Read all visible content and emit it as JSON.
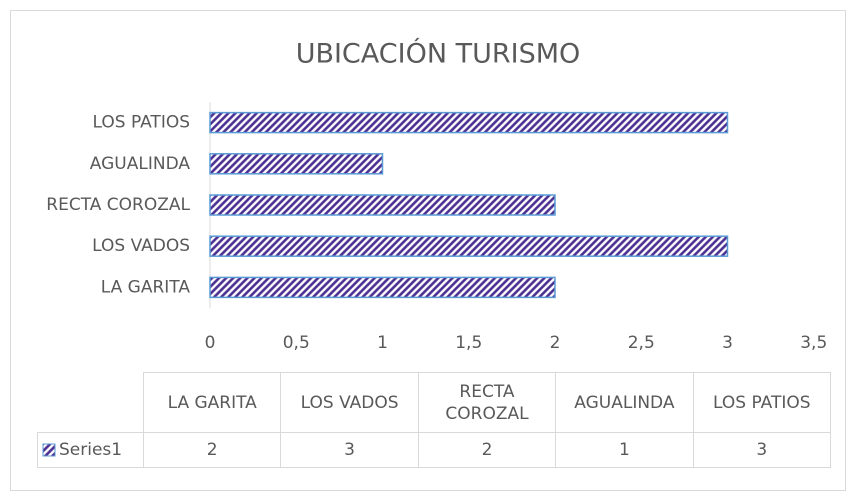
{
  "chart_data": {
    "type": "bar",
    "orientation": "horizontal",
    "title": "UBICACIÓN TURISMO",
    "categories": [
      "LA GARITA",
      "LOS VADOS",
      "RECTA COROZAL",
      "AGUALINDA",
      "LOS PATIOS"
    ],
    "series": [
      {
        "name": "Series1",
        "color": "#4b2e91",
        "values": [
          2,
          3,
          2,
          1,
          3
        ]
      }
    ],
    "xlim": [
      0,
      3.5
    ],
    "xticks": [
      0,
      {
        "value": 0.5,
        "label": "0,5"
      },
      1,
      {
        "value": 1.5,
        "label": "1,5"
      },
      2,
      {
        "value": 2.5,
        "label": "2,5"
      },
      3,
      {
        "value": 3.5,
        "label": "3,5"
      }
    ],
    "data_table": true
  }
}
